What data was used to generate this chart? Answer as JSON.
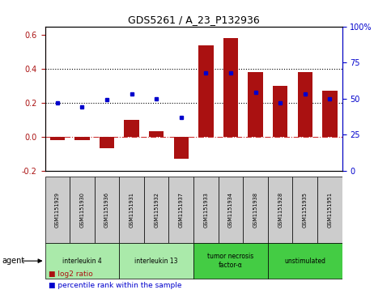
{
  "title": "GDS5261 / A_23_P132936",
  "samples": [
    "GSM1151929",
    "GSM1151930",
    "GSM1151936",
    "GSM1151931",
    "GSM1151932",
    "GSM1151937",
    "GSM1151933",
    "GSM1151934",
    "GSM1151938",
    "GSM1151928",
    "GSM1151935",
    "GSM1151951"
  ],
  "log2_ratio": [
    -0.02,
    -0.02,
    -0.07,
    0.1,
    0.03,
    -0.13,
    0.54,
    0.58,
    0.38,
    0.3,
    0.38,
    0.27
  ],
  "percentile_rank": [
    47,
    44,
    49,
    53,
    50,
    37,
    68,
    68,
    54,
    47,
    53,
    50
  ],
  "agents": [
    {
      "label": "interleukin 4",
      "start": 0,
      "end": 3,
      "color": "#aaeaaa"
    },
    {
      "label": "interleukin 13",
      "start": 3,
      "end": 6,
      "color": "#aaeaaa"
    },
    {
      "label": "tumor necrosis\nfactor-α",
      "start": 6,
      "end": 9,
      "color": "#44cc44"
    },
    {
      "label": "unstimulated",
      "start": 9,
      "end": 12,
      "color": "#44cc44"
    }
  ],
  "bar_color": "#aa1111",
  "dot_color": "#0000cc",
  "ylim_left": [
    -0.2,
    0.65
  ],
  "ylim_right": [
    0,
    100
  ],
  "yticks_left": [
    -0.2,
    0.0,
    0.2,
    0.4,
    0.6
  ],
  "yticks_right": [
    0,
    25,
    50,
    75,
    100
  ],
  "hline_zero_color": "#cc3333",
  "hline_zero_style": "dashdot",
  "hline_dotted_color": "#000000",
  "hline_dotted_style": "dotted",
  "hline_dotted_vals": [
    0.2,
    0.4
  ],
  "background_color": "#ffffff",
  "sample_box_color": "#cccccc",
  "agent_label": "agent"
}
